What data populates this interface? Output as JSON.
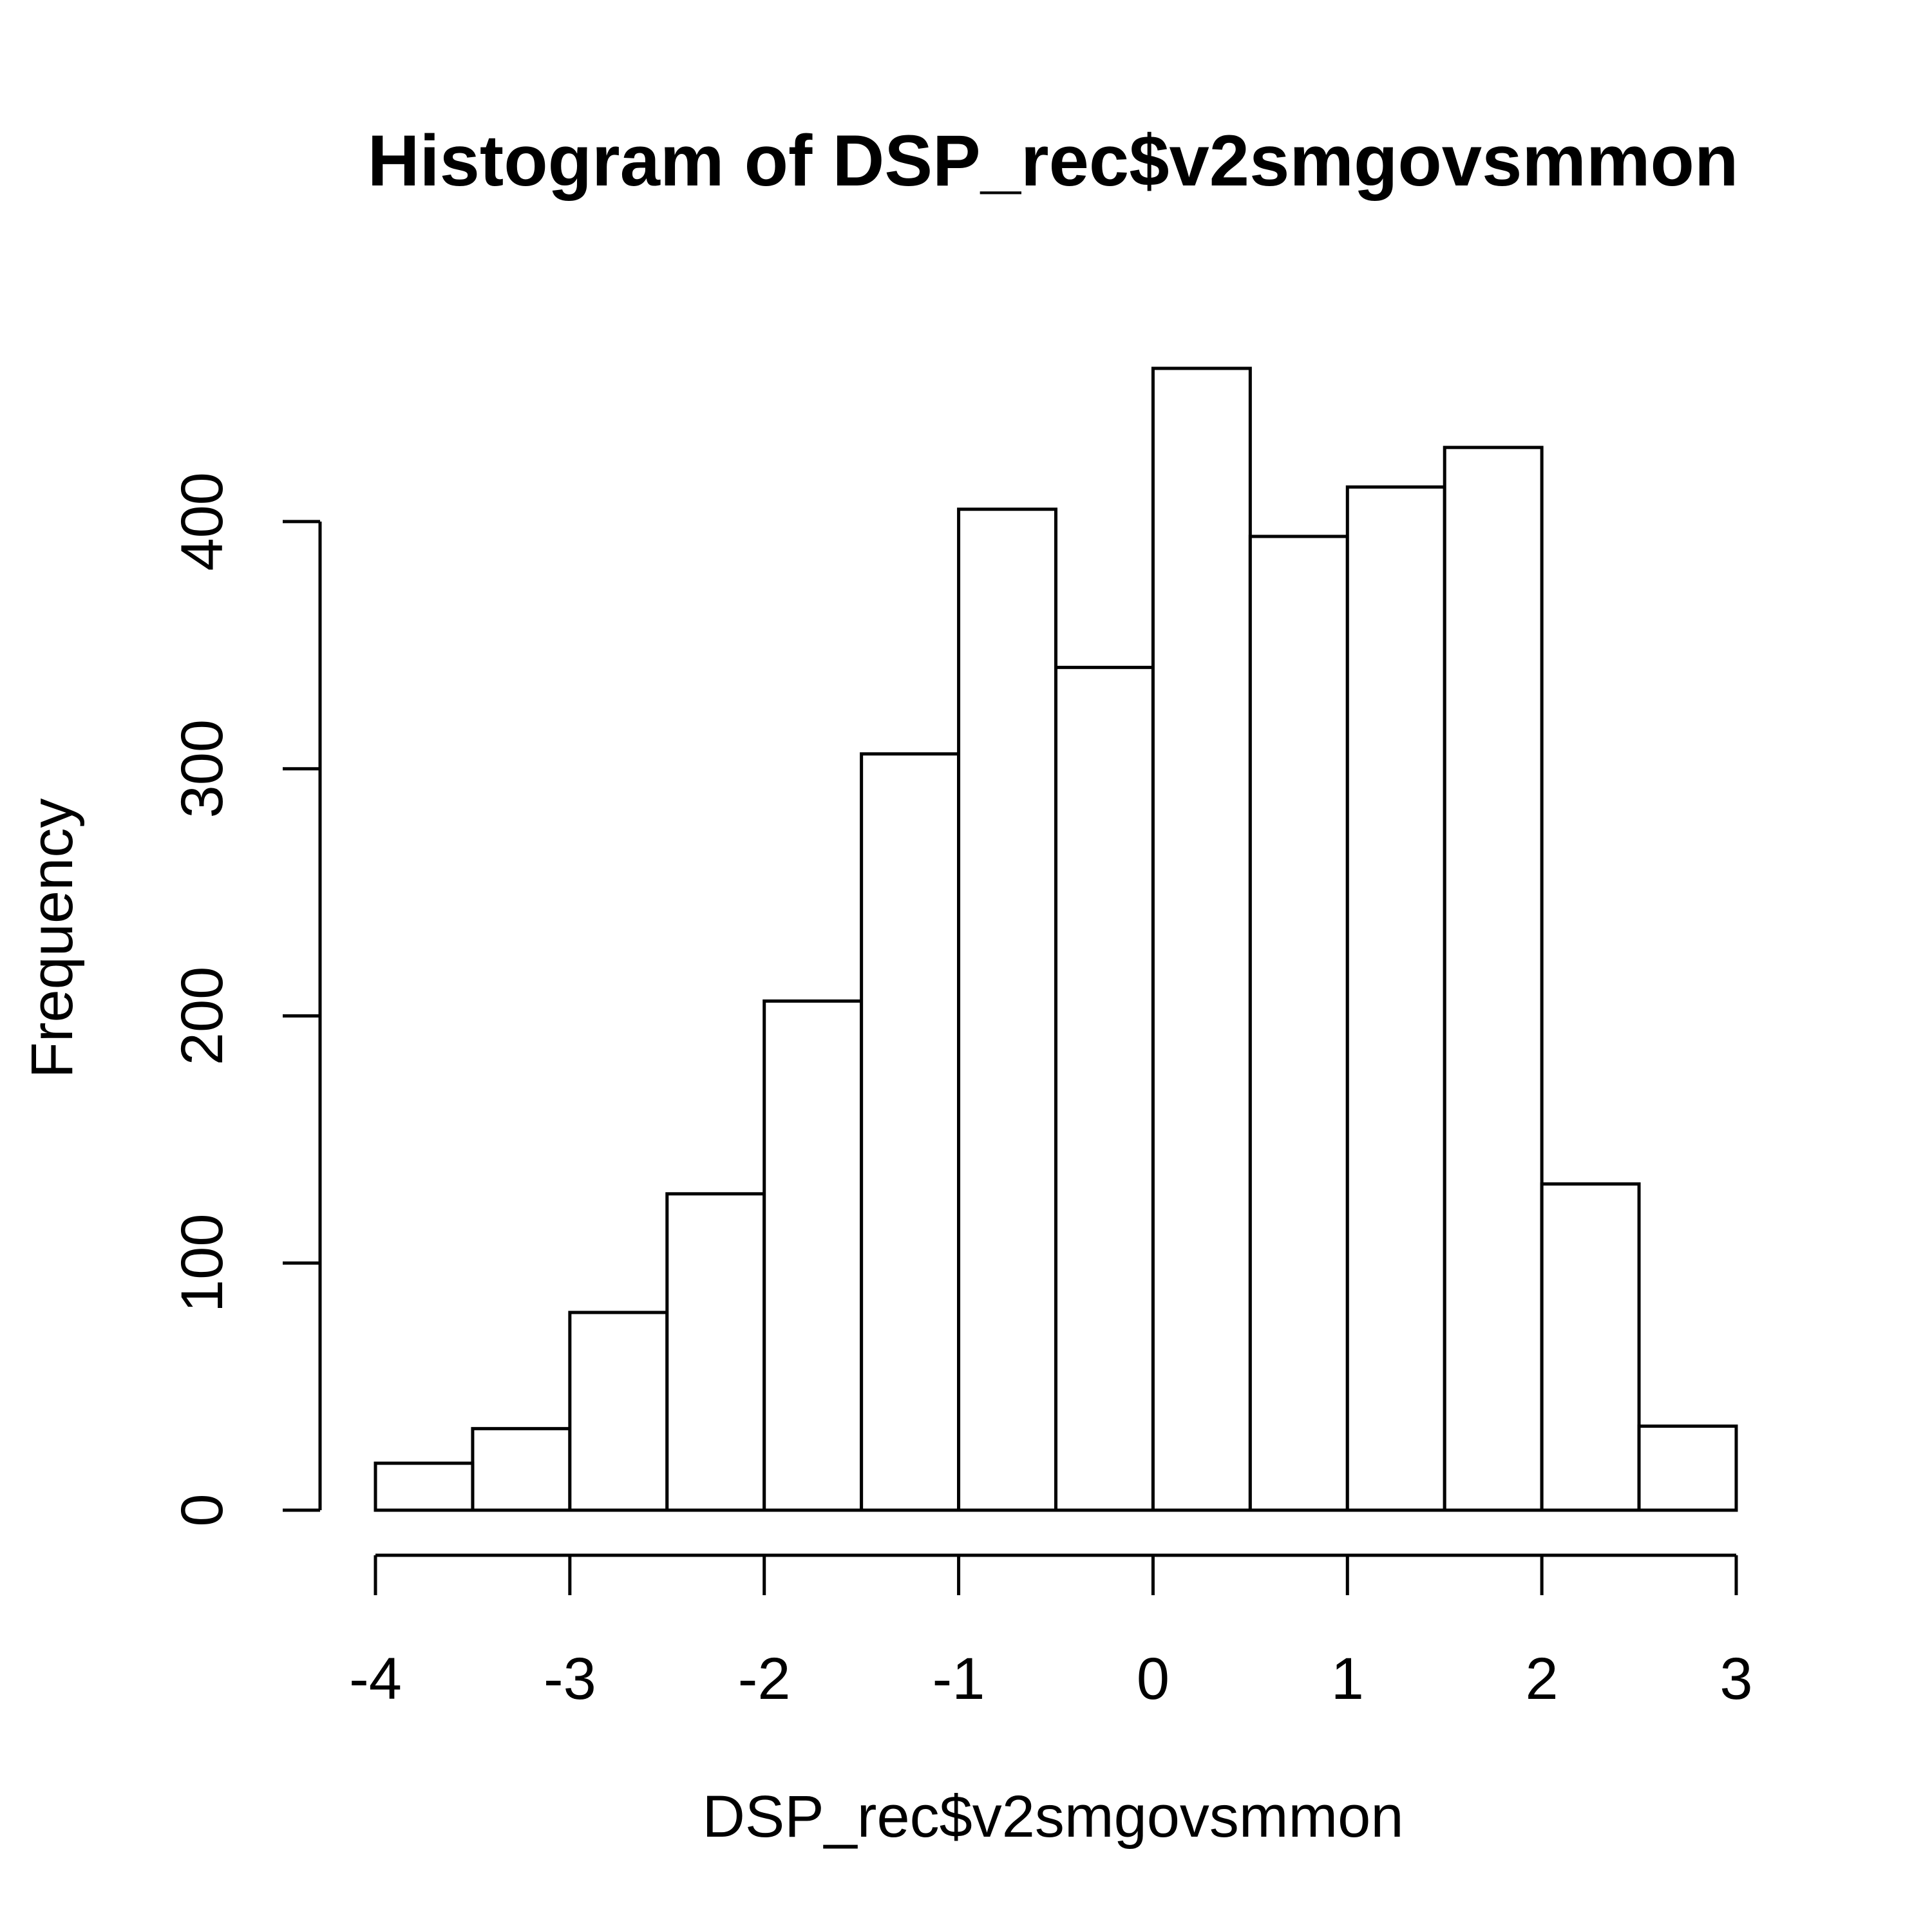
{
  "chart_data": {
    "type": "bar",
    "title": "Histogram of DSP_rec$v2smgovsmmon",
    "xlabel": "DSP_rec$v2smgovsmmon",
    "ylabel": "Frequency",
    "bins": [
      {
        "x0": -3.5,
        "x1": -3.0,
        "value": 33
      },
      {
        "x0": -3.0,
        "x1": -2.5,
        "value": 80
      },
      {
        "x0": -2.5,
        "x1": -2.0,
        "value": 128
      },
      {
        "x0": -2.0,
        "x1": -1.5,
        "value": 206
      },
      {
        "x0": -1.5,
        "x1": -1.0,
        "value": 306
      },
      {
        "x0": -1.0,
        "x1": -0.5,
        "value": 405
      },
      {
        "x0": -0.5,
        "x1": 0.0,
        "value": 341
      },
      {
        "x0": 0.0,
        "x1": 0.5,
        "value": 462
      },
      {
        "x0": 0.5,
        "x1": 1.0,
        "value": 394
      },
      {
        "x0": 1.0,
        "x1": 1.5,
        "value": 414
      },
      {
        "x0": 1.5,
        "x1": 2.0,
        "value": 430
      },
      {
        "x0": 2.0,
        "x1": 2.5,
        "value": 132
      },
      {
        "x0": 2.5,
        "x1": 3.0,
        "value": 34
      },
      {
        "x0": -4.0,
        "x1": -3.5,
        "value": 19
      }
    ],
    "xlim": [
      -4,
      3
    ],
    "ylim": [
      0,
      462
    ],
    "x_ticks": [
      -4,
      -3,
      -2,
      -1,
      0,
      1,
      2,
      3
    ],
    "y_ticks": [
      0,
      100,
      200,
      300,
      400
    ],
    "grid": false,
    "legend": "none",
    "bar_fill": "#ffffff",
    "bar_stroke": "#000000"
  }
}
